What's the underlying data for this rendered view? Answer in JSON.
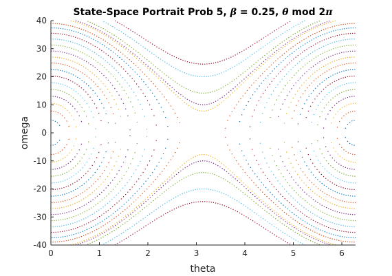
{
  "chart_data": {
    "type": "scatter",
    "title": {
      "prefix": "State-Space Portrait Prob 5, ",
      "beta_symbol": "β",
      "beta_text": " = 0.25, ",
      "theta_symbol": "θ",
      "mod_text": " mod 2",
      "pi_symbol": "π"
    },
    "xlabel": "theta",
    "ylabel": "omega",
    "xlim": [
      0,
      6.2832
    ],
    "ylim": [
      -40,
      40
    ],
    "xticks": [
      0,
      1,
      2,
      3,
      4,
      5,
      6
    ],
    "yticks": [
      -40,
      -30,
      -20,
      -10,
      0,
      10,
      20,
      30,
      40
    ],
    "xtick_labels": [
      "0",
      "1",
      "2",
      "3",
      "4",
      "5",
      "6"
    ],
    "ytick_labels": [
      "-40",
      "-30",
      "-20",
      "-10",
      "0",
      "10",
      "20",
      "30",
      "40"
    ],
    "grid": false,
    "legend": "none",
    "marker": "dot",
    "pendulum_coefficient": 400,
    "colors": [
      "#0072bd",
      "#d95319",
      "#edb120",
      "#7e2f8e",
      "#77ac30",
      "#4dbeee",
      "#a2142f"
    ],
    "series": [
      {
        "energy": -390
      },
      {
        "energy": -370
      },
      {
        "energy": -345
      },
      {
        "energy": -315
      },
      {
        "energy": -280
      },
      {
        "energy": -240
      },
      {
        "energy": -195
      },
      {
        "energy": -145
      },
      {
        "energy": -90
      },
      {
        "energy": -35
      },
      {
        "energy": 25
      },
      {
        "energy": 90
      },
      {
        "energy": 160
      },
      {
        "energy": 230
      },
      {
        "energy": 300
      },
      {
        "energy": 360
      },
      {
        "energy": 430
      },
      {
        "energy": 450
      },
      {
        "energy": 500
      },
      {
        "energy": 600
      },
      {
        "energy": 700
      }
    ]
  }
}
